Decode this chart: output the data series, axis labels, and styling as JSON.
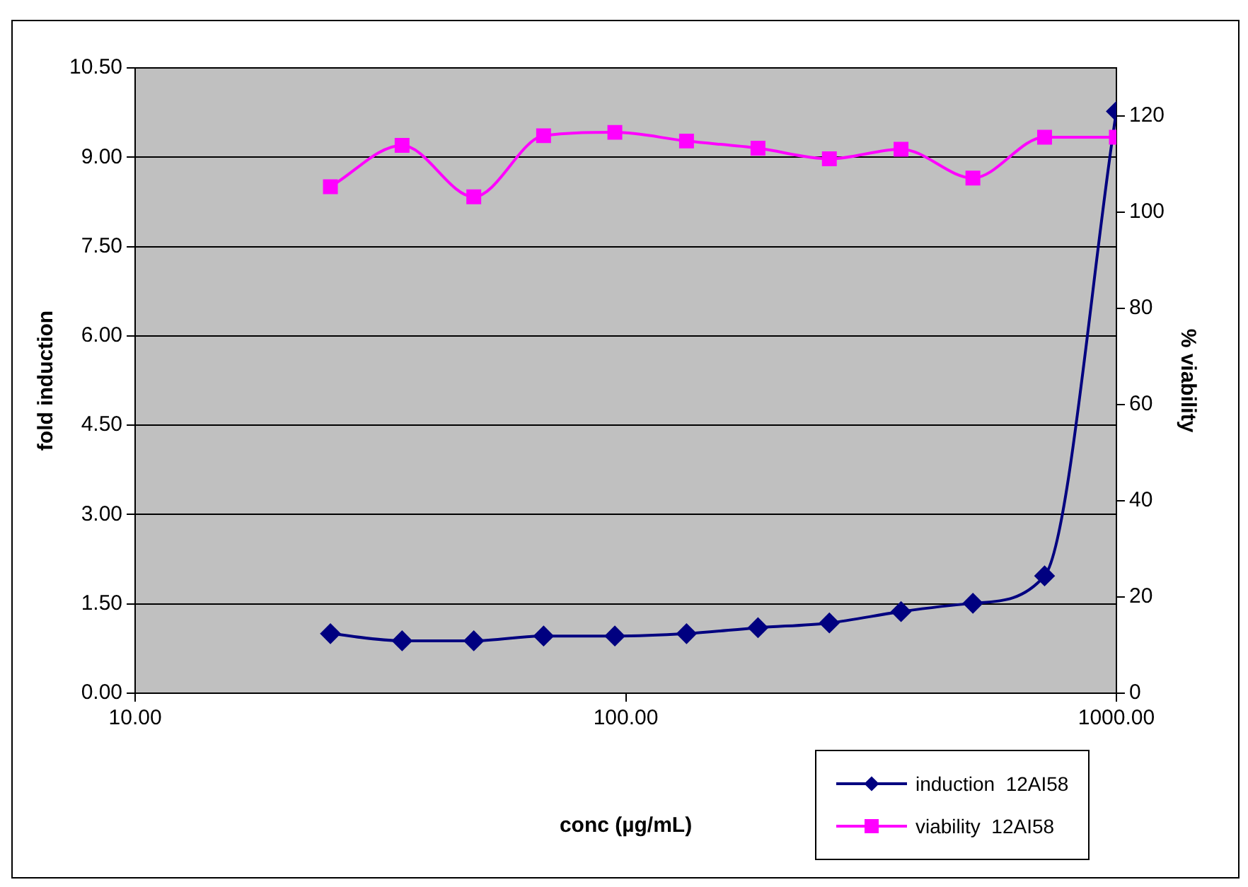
{
  "chart_data": {
    "type": "line",
    "xlabel": "conc (µg/mL)",
    "ylabel": "fold induction",
    "y2label": "% viability",
    "x": [
      25,
      35,
      49,
      68,
      95,
      133,
      186,
      260,
      364,
      510,
      714,
      1000
    ],
    "log": "x",
    "xlim": [
      10,
      1000
    ],
    "xticks": [
      {
        "value": 10,
        "label": "10.00"
      },
      {
        "value": 100,
        "label": "100.00"
      },
      {
        "value": 1000,
        "label": "1000.00"
      }
    ],
    "ylim": [
      0,
      10.5
    ],
    "yticks": [
      {
        "value": 0,
        "label": "0.00"
      },
      {
        "value": 1.5,
        "label": "1.50"
      },
      {
        "value": 3,
        "label": "3.00"
      },
      {
        "value": 4.5,
        "label": "4.50"
      },
      {
        "value": 6,
        "label": "6.00"
      },
      {
        "value": 7.5,
        "label": "7.50"
      },
      {
        "value": 9,
        "label": "9.00"
      },
      {
        "value": 10.5,
        "label": "10.50"
      }
    ],
    "y2lim": [
      0,
      130
    ],
    "y2ticks": [
      0,
      20,
      40,
      60,
      80,
      100,
      120
    ],
    "grid": "y",
    "legend": "bottom right",
    "series": [
      {
        "name": "induction  12AI58",
        "color": "#000080",
        "marker": "diamond",
        "values": [
          1.0,
          0.88,
          0.88,
          0.96,
          0.96,
          1.0,
          1.1,
          1.18,
          1.37,
          1.51,
          1.97,
          9.77
        ]
      },
      {
        "name": "viability  12AI58",
        "color": "#ff00ff",
        "marker": "square",
        "axis": "y2",
        "values": [
          105.3,
          113.9,
          103.2,
          115.9,
          116.6,
          114.8,
          113.3,
          111.1,
          113.1,
          107.1,
          115.6,
          115.6
        ]
      }
    ]
  }
}
